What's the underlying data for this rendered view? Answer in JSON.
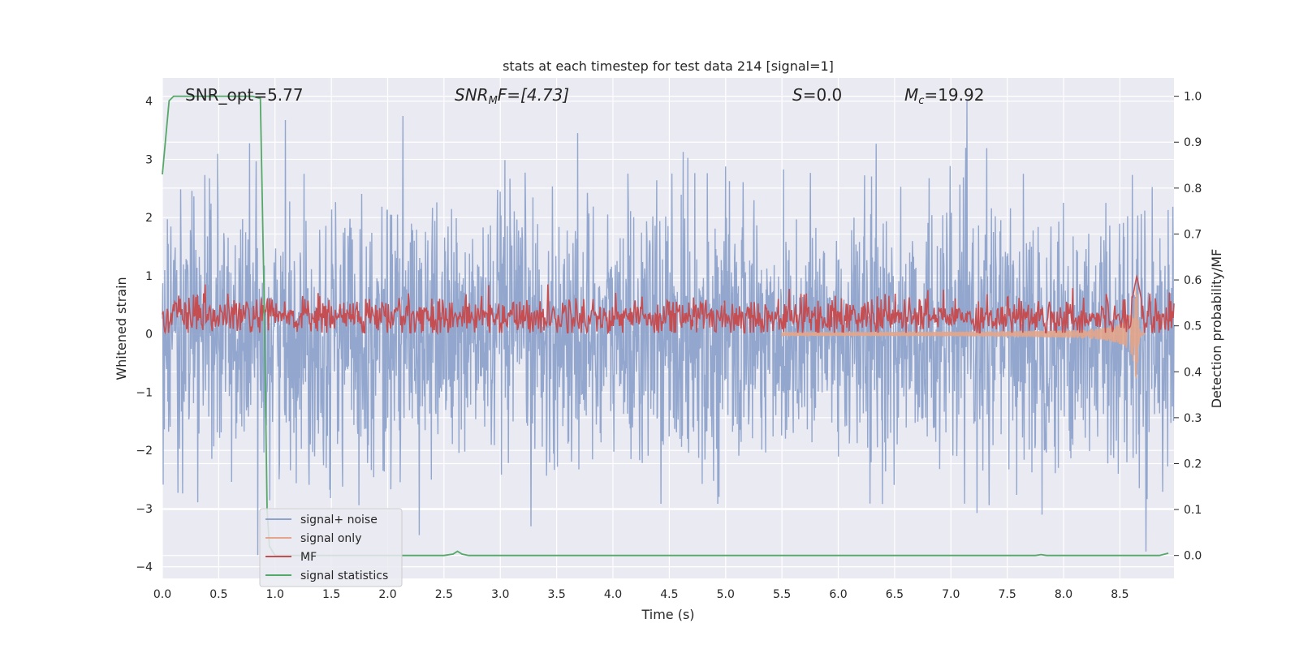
{
  "chart_data": {
    "type": "line",
    "title": "stats at each timestep for test data 214 [signal=1]",
    "xlabel": "Time (s)",
    "ylabel_left": "Whitened strain",
    "ylabel_right": "Detection probability/MF",
    "xlim": [
      0,
      8.98
    ],
    "ylim_left": [
      -4.2,
      4.4
    ],
    "ylim_right": [
      -0.05,
      1.04
    ],
    "x_ticks": [
      "0.0",
      "0.5",
      "1.0",
      "1.5",
      "2.0",
      "2.5",
      "3.0",
      "3.5",
      "4.0",
      "4.5",
      "5.0",
      "5.5",
      "6.0",
      "6.5",
      "7.0",
      "7.5",
      "8.0",
      "8.5"
    ],
    "y_left_ticks": [
      "4",
      "3",
      "2",
      "1",
      "0",
      "−1",
      "−2",
      "−3",
      "−4"
    ],
    "y_right_ticks": [
      "1.0",
      "0.9",
      "0.8",
      "0.7",
      "0.6",
      "0.5",
      "0.4",
      "0.3",
      "0.2",
      "0.1",
      "0.0"
    ],
    "grid": true,
    "legend_position": "lower-left",
    "annotations": {
      "snr_opt": "SNR_opt=5.77",
      "snr_mf_base": "SNR",
      "snr_mf_sub": "M",
      "snr_mf_rest": "F=[4.73]",
      "s_base": "S",
      "s_rest": "=0.0",
      "mc_base": "M",
      "mc_sub": "c",
      "mc_rest": "=19.92"
    },
    "series": [
      {
        "name": "signal+ noise",
        "axis": "left",
        "color": "#8ea3cb",
        "description_values": "noise-like strain, roughly N(0,1), peaks up to about 4.0 and down to about -3.8, length 9 s"
      },
      {
        "name": "signal only",
        "axis": "left",
        "color": "#e4a58a",
        "chirp": {
          "start": 5.5,
          "peak_time": 8.65,
          "peak_amplitude": 1.1
        }
      },
      {
        "name": "MF",
        "axis": "left",
        "color": "#c44e52",
        "mean_level": 0.3,
        "peak": {
          "x": 8.65,
          "y": 1.0
        }
      },
      {
        "name": "signal statistics",
        "axis": "right",
        "color": "#55a868",
        "x": [
          0.0,
          0.06,
          0.1,
          0.2,
          0.4,
          0.6,
          0.8,
          0.87,
          0.9,
          0.93,
          0.95,
          1.0,
          2.5,
          2.58,
          2.62,
          2.66,
          2.72,
          7.75,
          7.8,
          7.85,
          8.85,
          8.93
        ],
        "values": [
          0.83,
          0.99,
          1.0,
          1.0,
          1.0,
          1.0,
          1.0,
          0.995,
          0.6,
          0.1,
          0.02,
          0.0,
          0.0,
          0.003,
          0.009,
          0.003,
          0.0,
          0.0,
          0.002,
          0.0,
          0.0,
          0.005
        ]
      }
    ]
  }
}
